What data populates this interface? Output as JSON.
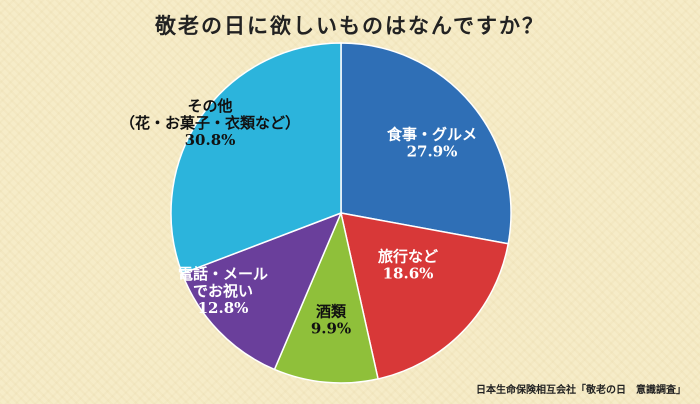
{
  "chart_data": {
    "type": "pie",
    "title": "敬老の日に欲しいものはなんですか？",
    "source": "日本生命保険相互会社「敬老の日　意識調査」",
    "slices": [
      {
        "label_lines": [
          "食事・グルメ"
        ],
        "value": 27.9,
        "value_label": "27.9%",
        "color": "#2f6fb6",
        "label_color": "#ffffff"
      },
      {
        "label_lines": [
          "旅行など"
        ],
        "value": 18.6,
        "value_label": "18.6%",
        "color": "#d83838",
        "label_color": "#ffffff"
      },
      {
        "label_lines": [
          "酒類"
        ],
        "value": 9.9,
        "value_label": "9.9%",
        "color": "#8fc03a",
        "label_color": "#111111"
      },
      {
        "label_lines": [
          "電話・メール",
          "でお祝い"
        ],
        "value": 12.8,
        "value_label": "12.8%",
        "color": "#6a3f9b",
        "label_color": "#ffffff"
      },
      {
        "label_lines": [
          "その他",
          "（花・お菓子・衣類など）"
        ],
        "value": 30.8,
        "value_label": "30.8%",
        "color": "#2cb4dc",
        "label_color": "#111111"
      }
    ]
  }
}
